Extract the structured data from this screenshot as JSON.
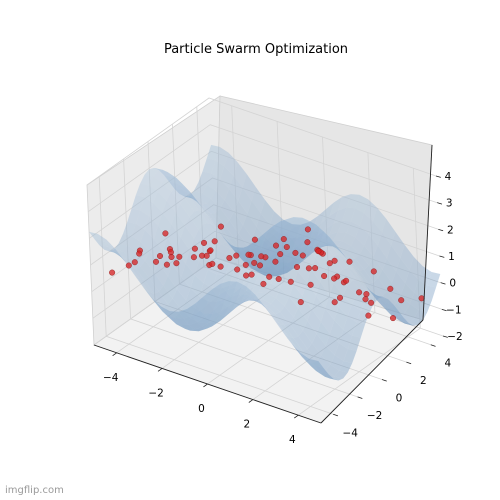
{
  "chart_data": {
    "type": "scatter",
    "projection": "3d",
    "title": "Particle Swarm Optimization",
    "xlabel": "",
    "ylabel": "",
    "zlabel": "",
    "xlim": [
      -5,
      5
    ],
    "ylim": [
      -5,
      5
    ],
    "zlim": [
      -2,
      4
    ],
    "x_ticks": [
      -4,
      -2,
      0,
      2,
      4
    ],
    "y_ticks": [
      -4,
      -2,
      0,
      2,
      4
    ],
    "z_ticks": [
      -2,
      -1,
      0,
      1,
      2,
      3,
      4
    ],
    "x_tick_labels": [
      "−4",
      "−2",
      "0",
      "2",
      "4"
    ],
    "y_tick_labels": [
      "−4",
      "−2",
      "0",
      "2",
      "4"
    ],
    "z_tick_labels": [
      "−2",
      "−1",
      "0",
      "1",
      "2",
      "3",
      "4"
    ],
    "grid": true,
    "surface": {
      "function": "sin(x) + cos(y) + 1",
      "color": "#7fa3c4",
      "alpha": 0.45
    },
    "particle_color": "#d62728",
    "particles": [
      {
        "x": -4.5,
        "y": -4.2,
        "z": 0.6
      },
      {
        "x": -3.8,
        "y": -3.6,
        "z": 1.0
      },
      {
        "x": -3.1,
        "y": -4.4,
        "z": 1.9
      },
      {
        "x": -2.6,
        "y": -3.2,
        "z": 2.3
      },
      {
        "x": -1.7,
        "y": -4.5,
        "z": 2.4
      },
      {
        "x": -4.6,
        "y": -1.8,
        "z": 0.5
      },
      {
        "x": -4.0,
        "y": -0.7,
        "z": -0.1
      },
      {
        "x": -3.4,
        "y": 0.4,
        "z": 0.0
      },
      {
        "x": -4.7,
        "y": 1.3,
        "z": -0.9
      },
      {
        "x": -3.6,
        "y": 2.2,
        "z": -0.9
      },
      {
        "x": -2.4,
        "y": 3.4,
        "z": -0.9
      },
      {
        "x": -4.1,
        "y": 3.9,
        "z": -0.2
      },
      {
        "x": -1.9,
        "y": 4.3,
        "z": -0.4
      },
      {
        "x": -1.0,
        "y": 2.8,
        "z": -0.9
      },
      {
        "x": 0.2,
        "y": 3.6,
        "z": -0.4
      },
      {
        "x": 1.3,
        "y": 4.4,
        "z": -0.1
      },
      {
        "x": 2.4,
        "y": 3.1,
        "z": -0.5
      },
      {
        "x": 3.3,
        "y": 4.0,
        "z": -0.4
      },
      {
        "x": 4.1,
        "y": 3.4,
        "z": -0.4
      },
      {
        "x": 4.6,
        "y": 1.8,
        "z": -0.4
      },
      {
        "x": 4.3,
        "y": 0.3,
        "z": 0.9
      },
      {
        "x": 3.9,
        "y": -1.1,
        "z": 1.1
      },
      {
        "x": 4.5,
        "y": -2.6,
        "z": 1.6
      },
      {
        "x": 3.6,
        "y": -3.7,
        "z": 1.7
      },
      {
        "x": 2.3,
        "y": -4.3,
        "z": 2.2
      },
      {
        "x": 1.1,
        "y": -3.5,
        "z": 2.3
      },
      {
        "x": -0.2,
        "y": -4.0,
        "z": 2.6
      },
      {
        "x": -1.4,
        "y": -2.3,
        "z": 2.0
      },
      {
        "x": -0.6,
        "y": -1.2,
        "z": 1.4
      },
      {
        "x": 0.5,
        "y": -2.0,
        "z": 2.0
      },
      {
        "x": 1.5,
        "y": -1.1,
        "z": 2.6
      },
      {
        "x": 2.6,
        "y": -2.1,
        "z": 2.2
      },
      {
        "x": -2.3,
        "y": -0.9,
        "z": 0.8
      },
      {
        "x": -1.6,
        "y": 0.6,
        "z": 0.0
      },
      {
        "x": -0.4,
        "y": 0.3,
        "z": 0.6
      },
      {
        "x": 0.7,
        "y": 1.2,
        "z": 1.1
      },
      {
        "x": 1.7,
        "y": 0.5,
        "z": 2.5
      },
      {
        "x": 2.8,
        "y": 1.4,
        "z": 0.6
      },
      {
        "x": 3.2,
        "y": 2.6,
        "z": -0.5
      },
      {
        "x": 1.9,
        "y": 2.3,
        "z": 0.2
      },
      {
        "x": 0.6,
        "y": 2.4,
        "z": 0.1
      },
      {
        "x": -0.8,
        "y": 1.7,
        "z": -0.4
      },
      {
        "x": -2.9,
        "y": 1.6,
        "z": -0.6
      },
      {
        "x": -2.7,
        "y": -2.0,
        "z": 1.0
      },
      {
        "x": 2.1,
        "y": -0.3,
        "z": 2.4
      },
      {
        "x": 3.0,
        "y": 0.2,
        "z": 1.8
      },
      {
        "x": 0.1,
        "y": -3.0,
        "z": 2.1
      },
      {
        "x": -1.2,
        "y": -3.4,
        "z": 2.2
      },
      {
        "x": 1.0,
        "y": 0.0,
        "z": 1.8
      },
      {
        "x": -0.1,
        "y": 1.0,
        "z": 0.6
      },
      {
        "x": 4.4,
        "y": 4.5,
        "z": -0.6
      },
      {
        "x": -3.3,
        "y": -2.8,
        "z": 0.9
      },
      {
        "x": 0.3,
        "y": 0.7,
        "z": 1.1
      },
      {
        "x": -2.0,
        "y": 2.0,
        "z": -0.8
      },
      {
        "x": 2.8,
        "y": -3.0,
        "z": 2.0
      },
      {
        "x": -0.5,
        "y": -0.4,
        "z": 1.2
      },
      {
        "x": 1.6,
        "y": 1.8,
        "z": 0.3
      },
      {
        "x": -3.9,
        "y": 3.0,
        "z": -0.4
      },
      {
        "x": 3.6,
        "y": -0.2,
        "z": 1.3
      },
      {
        "x": 1.2,
        "y": 3.3,
        "z": -0.4
      },
      {
        "x": -1.3,
        "y": 1.2,
        "z": -0.3
      },
      {
        "x": -2.0,
        "y": -3.9,
        "z": 2.0
      },
      {
        "x": -0.9,
        "y": -2.7,
        "z": 2.0
      },
      {
        "x": 0.4,
        "y": -1.0,
        "z": 1.6
      },
      {
        "x": -4.3,
        "y": -3.2,
        "z": 0.6
      },
      {
        "x": 2.2,
        "y": 4.7,
        "z": -0.3
      },
      {
        "x": -3.0,
        "y": 4.6,
        "z": -0.6
      },
      {
        "x": 4.8,
        "y": -0.5,
        "z": 0.5
      },
      {
        "x": -4.8,
        "y": 0.2,
        "z": -0.3
      },
      {
        "x": 3.8,
        "y": 1.1,
        "z": 0.3
      },
      {
        "x": -1.7,
        "y": -1.6,
        "z": 1.2
      },
      {
        "x": -0.3,
        "y": 4.8,
        "z": -0.3
      },
      {
        "x": 0.8,
        "y": 1.6,
        "z": 0.9
      },
      {
        "x": 1.6,
        "y": -2.8,
        "z": 2.5
      },
      {
        "x": -2.5,
        "y": 0.0,
        "z": 0.1
      },
      {
        "x": 2.5,
        "y": 0.7,
        "z": 1.4
      },
      {
        "x": -3.5,
        "y": -1.2,
        "z": 0.5
      },
      {
        "x": 3.4,
        "y": -2.5,
        "z": 1.9
      },
      {
        "x": 1.8,
        "y": 1.0,
        "z": 1.6
      },
      {
        "x": 1.85,
        "y": 1.05,
        "z": 1.55
      },
      {
        "x": 1.9,
        "y": 1.1,
        "z": 1.5
      },
      {
        "x": 1.95,
        "y": 1.15,
        "z": 1.45
      }
    ]
  },
  "watermark": "imgflip.com"
}
